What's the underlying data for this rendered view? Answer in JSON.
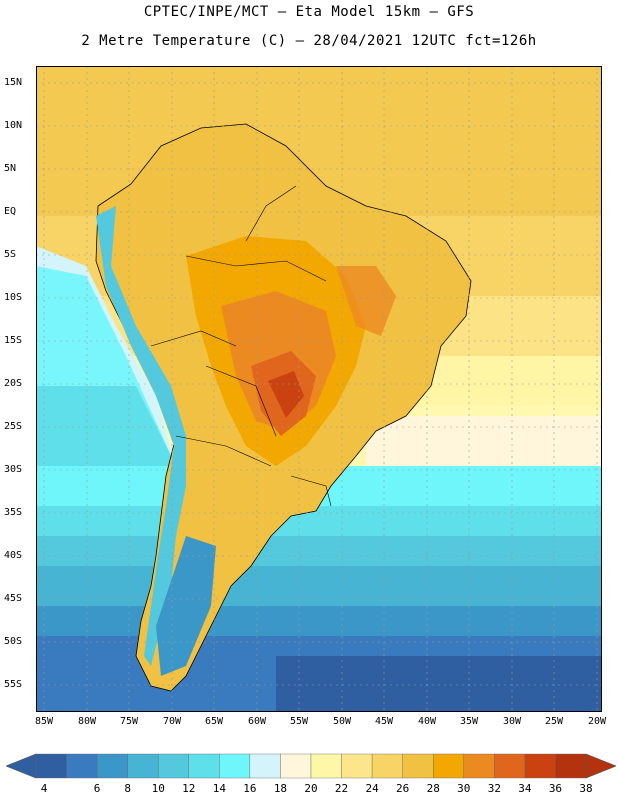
{
  "header": {
    "line1": "CPTEC/INPE/MCT –  Eta Model 15km – GFS",
    "line2": "2 Metre Temperature (C) – 28/04/2021 12UTC fct=126h"
  },
  "map": {
    "lat_labels": [
      "15N",
      "10N",
      "5N",
      "EQ",
      "5S",
      "10S",
      "15S",
      "20S",
      "25S",
      "30S",
      "35S",
      "40S",
      "45S",
      "50S",
      "55S"
    ],
    "lon_labels": [
      "85W",
      "80W",
      "75W",
      "70W",
      "65W",
      "60W",
      "55W",
      "50W",
      "45W",
      "40W",
      "35W",
      "30W",
      "25W",
      "20W"
    ]
  },
  "colorbar": {
    "labels": [
      "4",
      "6",
      "8",
      "10",
      "12",
      "14",
      "16",
      "18",
      "20",
      "22",
      "24",
      "26",
      "28",
      "30",
      "32",
      "34",
      "36",
      "38"
    ],
    "colors": [
      "#2f5fa0",
      "#3a7bbf",
      "#3c97c9",
      "#48b4d4",
      "#54c8dc",
      "#5fdfea",
      "#6ff6fb",
      "#d4f4fb",
      "#fff6dc",
      "#fff7a8",
      "#fce58a",
      "#f8d466",
      "#f0c143",
      "#f2a800",
      "#ec8a22",
      "#e0661d",
      "#c9420f",
      "#b3330e"
    ]
  }
}
